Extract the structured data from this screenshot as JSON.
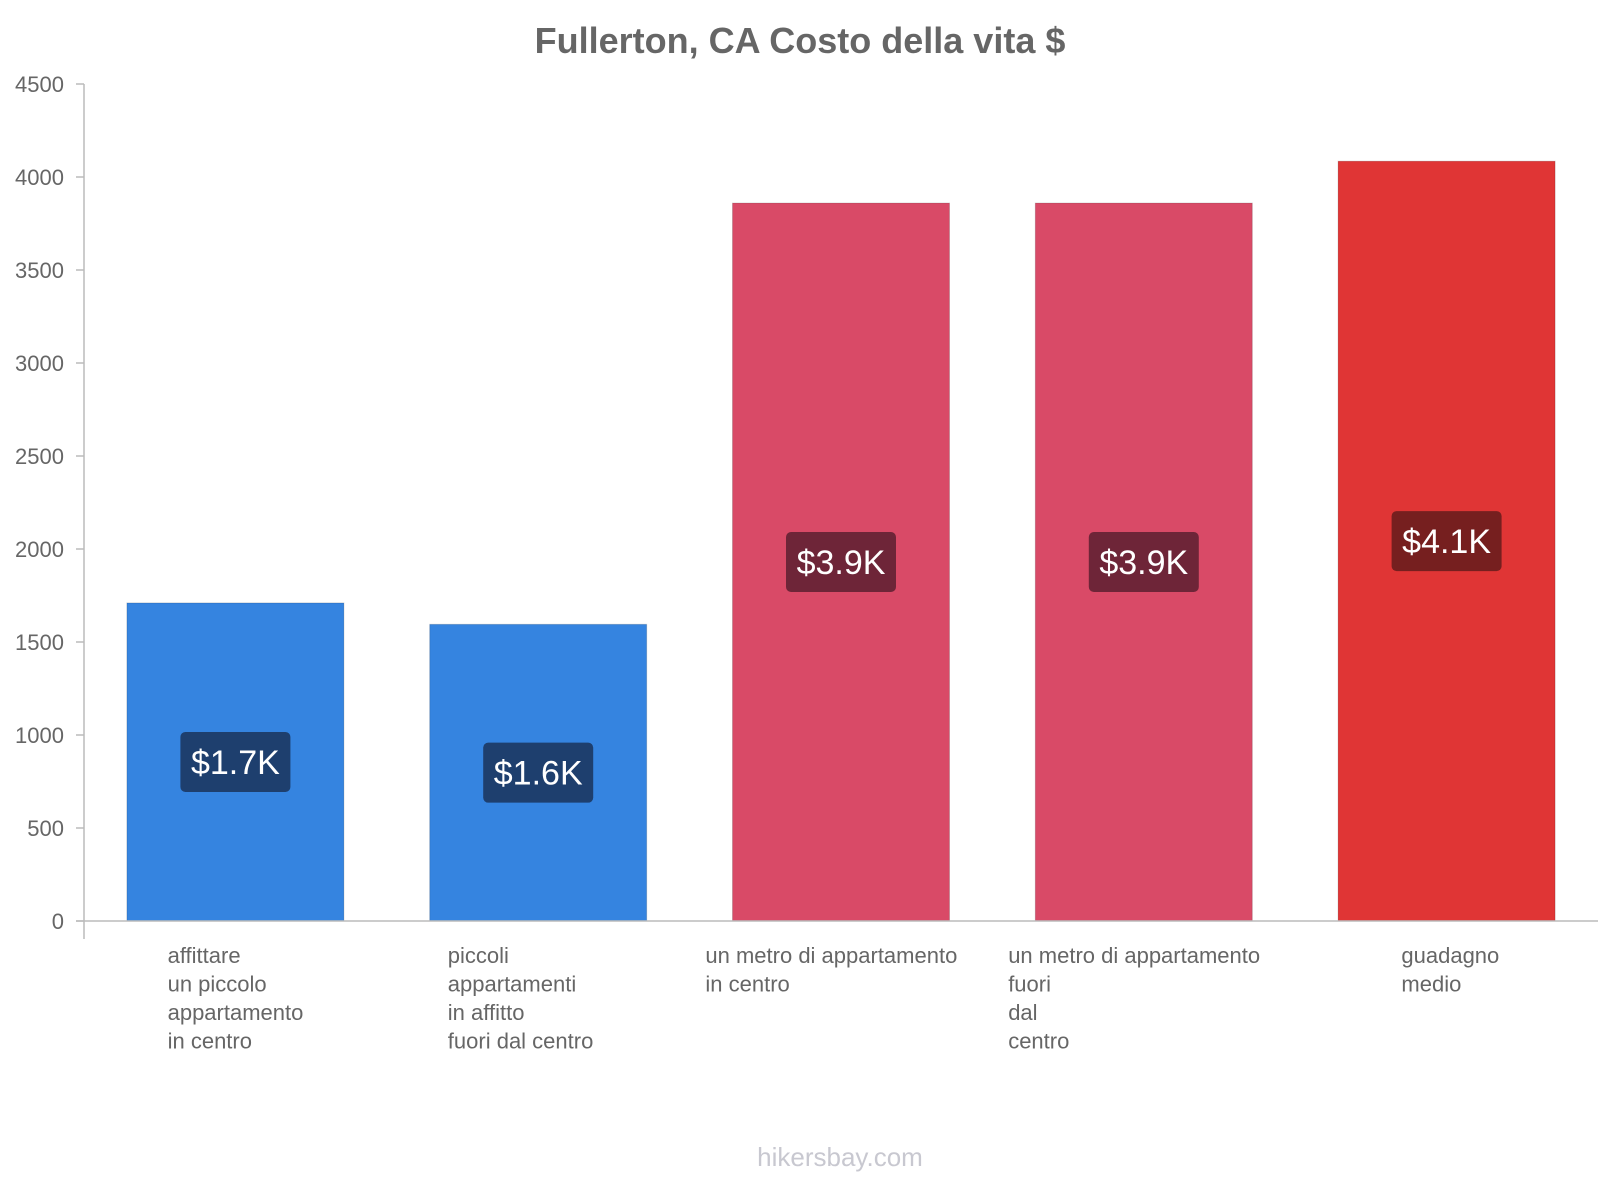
{
  "chart_data": {
    "type": "bar",
    "title": "Fullerton, CA Costo della vita $",
    "xlabel": "",
    "ylabel": "",
    "ylim": [
      0,
      4500
    ],
    "yticks": [
      0,
      500,
      1000,
      1500,
      2000,
      2500,
      3000,
      3500,
      4000,
      4500
    ],
    "grid": false,
    "categories": [
      [
        "affittare",
        "un piccolo",
        "appartamento",
        "in centro"
      ],
      [
        "piccoli",
        "appartamenti",
        "in affitto",
        "fuori dal centro"
      ],
      [
        "un metro di appartamento",
        "in centro"
      ],
      [
        "un metro di appartamento",
        "fuori",
        "dal",
        "centro"
      ],
      [
        "guadagno",
        "medio"
      ]
    ],
    "values": [
      1710,
      1595,
      3860,
      3860,
      4085
    ],
    "data_labels": [
      "$1.7K",
      "$1.6K",
      "$3.9K",
      "$3.9K",
      "$4.1K"
    ],
    "bar_colors": [
      "#3584e0",
      "#3584e0",
      "#d94a67",
      "#d94a67",
      "#e03535"
    ],
    "label_bg_colors": [
      "#1e3f6e",
      "#1e3f6e",
      "#6e2538",
      "#6e2538",
      "#761f1f"
    ]
  },
  "watermark": "hikersbay.com"
}
